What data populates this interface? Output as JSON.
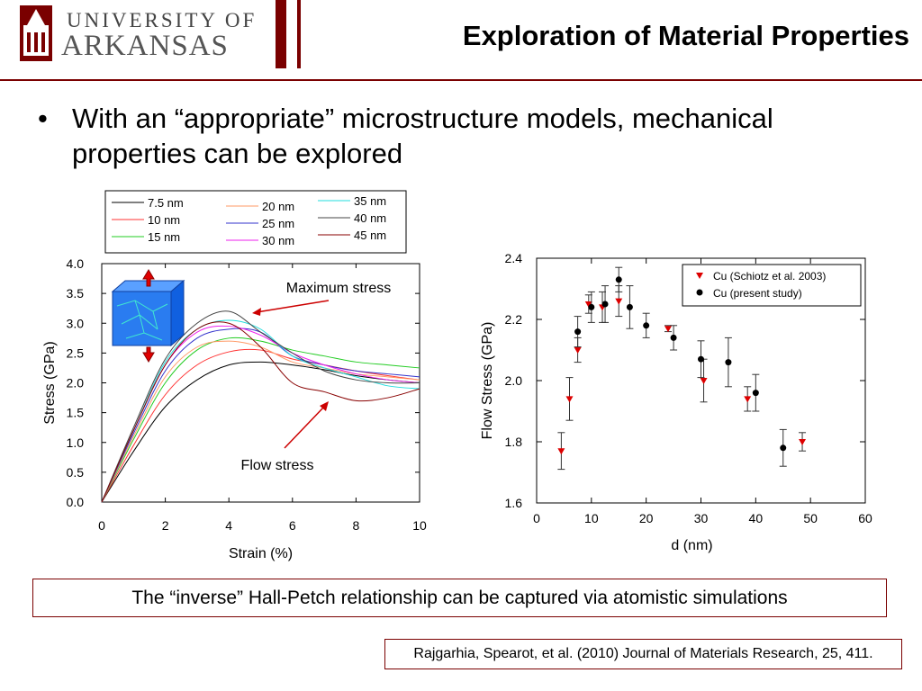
{
  "header": {
    "logo_line1": "UNIVERSITY OF",
    "logo_line2": "ARKANSAS",
    "title": "Exploration of Material Properties",
    "accent_color": "#7a0000"
  },
  "bullet": {
    "symbol": "•",
    "text": "With an “appropriate” microstructure models, mechanical properties can be explored"
  },
  "annotations": {
    "max_stress": "Maximum stress",
    "flow_stress": "Flow stress",
    "annotation_color": "#cc0000"
  },
  "caption": "The “inverse” Hall-Petch relationship can be captured via atomistic simulations",
  "reference": "Rajgarhia, Spearot, et al. (2010) Journal of Materials Research, 25, 411.",
  "chart_data": [
    {
      "type": "line",
      "xlabel": "Strain (%)",
      "ylabel": "Stress (GPa)",
      "xlim": [
        0,
        10
      ],
      "ylim": [
        0,
        4.0
      ],
      "xticks": [
        "0",
        "2",
        "4",
        "6",
        "8",
        "10"
      ],
      "yticks": [
        "0.0",
        "0.5",
        "1.0",
        "1.5",
        "2.0",
        "2.5",
        "3.0",
        "3.5",
        "4.0"
      ],
      "legend": "top",
      "series": [
        {
          "name": "7.5 nm",
          "color": "#000000",
          "x": [
            0,
            1,
            2,
            3,
            4,
            5,
            6,
            7,
            8,
            9,
            10
          ],
          "y": [
            0,
            0.85,
            1.6,
            2.05,
            2.3,
            2.35,
            2.3,
            2.22,
            2.12,
            2.05,
            2.0
          ]
        },
        {
          "name": "10 nm",
          "color": "#ff3333",
          "x": [
            0,
            1,
            2,
            3,
            4,
            5,
            6,
            7,
            8,
            9,
            10
          ],
          "y": [
            0,
            0.95,
            1.8,
            2.3,
            2.52,
            2.55,
            2.4,
            2.3,
            2.2,
            2.12,
            2.05
          ]
        },
        {
          "name": "15 nm",
          "color": "#22cc22",
          "x": [
            0,
            1,
            2,
            3,
            4,
            5,
            6,
            7,
            8,
            9,
            10
          ],
          "y": [
            0,
            1.05,
            2.0,
            2.55,
            2.75,
            2.7,
            2.55,
            2.45,
            2.35,
            2.3,
            2.25
          ]
        },
        {
          "name": "20 nm",
          "color": "#ff9966",
          "x": [
            0,
            1,
            2,
            3,
            4,
            5,
            6,
            7,
            8,
            9,
            10
          ],
          "y": [
            0,
            1.1,
            2.1,
            2.6,
            2.7,
            2.6,
            2.35,
            2.25,
            2.15,
            2.1,
            2.05
          ]
        },
        {
          "name": "25 nm",
          "color": "#3333cc",
          "x": [
            0,
            1,
            2,
            3,
            4,
            5,
            6,
            7,
            8,
            9,
            10
          ],
          "y": [
            0,
            1.15,
            2.2,
            2.75,
            2.9,
            2.85,
            2.45,
            2.3,
            2.2,
            2.15,
            2.1
          ]
        },
        {
          "name": "30 nm",
          "color": "#ee22ee",
          "x": [
            0,
            1,
            2,
            3,
            4,
            5,
            6,
            7,
            8,
            9,
            10
          ],
          "y": [
            0,
            1.2,
            2.3,
            2.85,
            2.95,
            2.8,
            2.5,
            2.3,
            2.15,
            2.05,
            2.0
          ]
        },
        {
          "name": "35 nm",
          "color": "#22dddd",
          "x": [
            0,
            1,
            2,
            3,
            4,
            5,
            6,
            7,
            8,
            9,
            10
          ],
          "y": [
            0,
            1.2,
            2.35,
            2.9,
            3.05,
            2.9,
            2.45,
            2.25,
            2.1,
            1.95,
            1.9
          ]
        },
        {
          "name": "40 nm",
          "color": "#444444",
          "x": [
            0,
            1,
            2,
            3,
            4,
            5,
            6,
            7,
            8,
            9,
            10
          ],
          "y": [
            0,
            1.25,
            2.4,
            3.0,
            3.2,
            2.85,
            2.5,
            2.2,
            2.05,
            2.0,
            2.0
          ]
        },
        {
          "name": "45 nm",
          "color": "#880000",
          "x": [
            0,
            1,
            2,
            3,
            4,
            5,
            6,
            7,
            8,
            9,
            10
          ],
          "y": [
            0,
            1.2,
            2.3,
            2.9,
            3.0,
            2.6,
            2.0,
            1.85,
            1.7,
            1.75,
            1.9
          ]
        }
      ]
    },
    {
      "type": "scatter",
      "xlabel": "d (nm)",
      "ylabel": "Flow Stress (GPa)",
      "xlim": [
        0,
        60
      ],
      "ylim": [
        1.6,
        2.4
      ],
      "xticks": [
        "0",
        "10",
        "20",
        "30",
        "40",
        "50",
        "60"
      ],
      "yticks": [
        "1.6",
        "1.8",
        "2.0",
        "2.2",
        "2.4"
      ],
      "legend": "top-right",
      "series": [
        {
          "name": "Cu (Schiotz et al. 2003)",
          "marker": "triangle-down",
          "color": "#dd0000",
          "x": [
            4.5,
            6,
            7.5,
            9.5,
            12,
            15,
            24,
            30.5,
            38.5,
            48.5
          ],
          "y": [
            1.77,
            1.94,
            2.1,
            2.25,
            2.24,
            2.26,
            2.17,
            2.0,
            1.94,
            1.8
          ],
          "err": [
            0.06,
            0.07,
            0.04,
            0.03,
            0.05,
            0.05,
            0.01,
            0.07,
            0.04,
            0.03
          ]
        },
        {
          "name": "Cu (present study)",
          "marker": "circle",
          "color": "#000000",
          "x": [
            7.5,
            10,
            12.5,
            15,
            17,
            20,
            25,
            30,
            35,
            40,
            45
          ],
          "y": [
            2.16,
            2.24,
            2.25,
            2.33,
            2.24,
            2.18,
            2.14,
            2.07,
            2.06,
            1.96,
            1.78
          ],
          "err": [
            0.05,
            0.05,
            0.06,
            0.04,
            0.07,
            0.04,
            0.04,
            0.06,
            0.08,
            0.06,
            0.06
          ]
        }
      ]
    }
  ]
}
